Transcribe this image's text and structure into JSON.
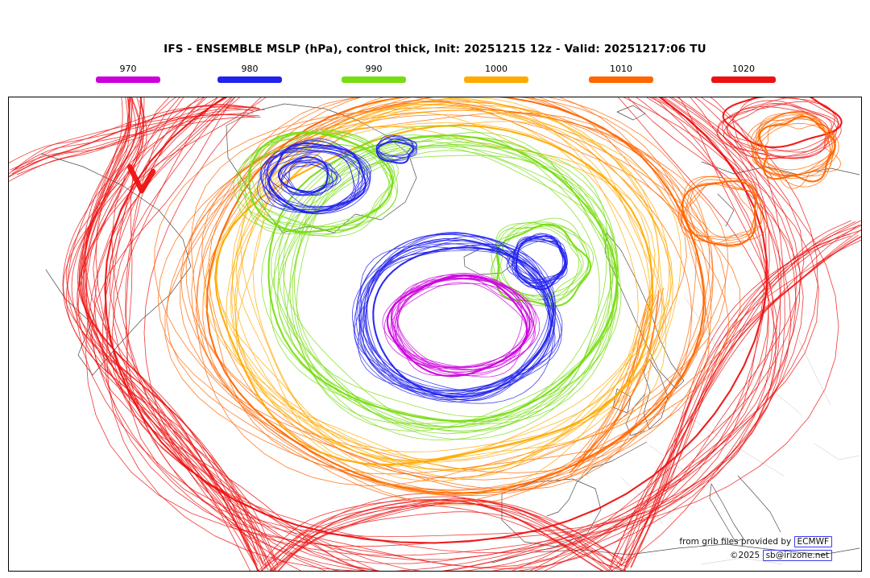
{
  "header": {
    "title": "IFS - ENSEMBLE MSLP (hPa), control thick, Init: 20251215 12z - Valid: 20251217:06 TU"
  },
  "legend": {
    "items": [
      {
        "label": "970",
        "color": "#cc00dd"
      },
      {
        "label": "980",
        "color": "#2222ee"
      },
      {
        "label": "990",
        "color": "#77dd11"
      },
      {
        "label": "1000",
        "color": "#ffaa00"
      },
      {
        "label": "1010",
        "color": "#ff6600"
      },
      {
        "label": "1020",
        "color": "#ee1111"
      }
    ]
  },
  "map": {
    "contour_levels_hpa": [
      970,
      980,
      990,
      1000,
      1010,
      1020
    ],
    "coast_color": "#3a3a3a",
    "border_color": "#bbbbbb",
    "attribution": {
      "line1_prefix": "from grib files provided by ",
      "line1_link": "ECMWF",
      "line2_prefix": "©2025 ",
      "line2_link": "sb@irizone.net"
    }
  }
}
